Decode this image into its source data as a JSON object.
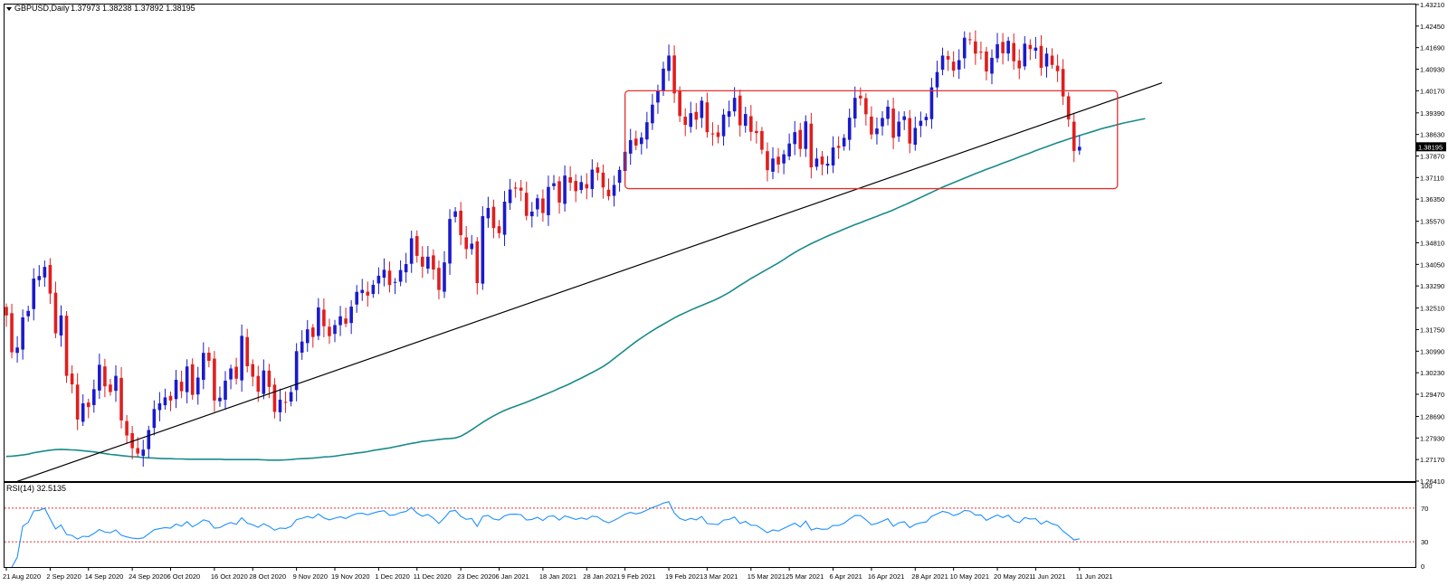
{
  "header": {
    "symbol": "GBPUSD,Daily",
    "ohlc": "1.37973 1.38238 1.37892 1.38195"
  },
  "current_price_label": "1.38195",
  "rsi_header": "RSI(14) 32.5135",
  "colors": {
    "bull": "#1a1acc",
    "bear": "#e01e1e",
    "ma": "#1a8a8a",
    "trendline": "#000000",
    "box": "#e53030",
    "rsi": "#1e90ff",
    "rsi_levels": "#e53030",
    "grid": "#c8c8c8"
  },
  "chart_data": [
    {
      "type": "candlestick",
      "title": "GBPUSD,Daily",
      "ylim": [
        1.2641,
        1.4321
      ],
      "price_ticks": [
        "1.43210",
        "1.42450",
        "1.41690",
        "1.40930",
        "1.40170",
        "1.39390",
        "1.38630",
        "1.37870",
        "1.37110",
        "1.36350",
        "1.35570",
        "1.34810",
        "1.34050",
        "1.33290",
        "1.32510",
        "1.31750",
        "1.30990",
        "1.30230",
        "1.29470",
        "1.28690",
        "1.27930",
        "1.27170",
        "1.26410"
      ],
      "x_labels": [
        "21 Aug 2020",
        "2 Sep 2020",
        "14 Sep 2020",
        "24 Sep 2020",
        "6 Oct 2020",
        "16 Oct 2020",
        "28 Oct 2020",
        "9 Nov 2020",
        "19 Nov 2020",
        "1 Dec 2020",
        "11 Dec 2020",
        "23 Dec 2020",
        "6 Jan 2021",
        "18 Jan 2021",
        "28 Jan 2021",
        "9 Feb 2021",
        "19 Feb 2021",
        "3 Mar 2021",
        "15 Mar 2021",
        "25 Mar 2021",
        "6 Apr 2021",
        "16 Apr 2021",
        "28 Apr 2021",
        "10 May 2021",
        "20 May 2021",
        "1 Jun 2021",
        "11 Jun 2021"
      ],
      "closes": [
        1.3225,
        1.3095,
        1.3112,
        1.3218,
        1.3241,
        1.3355,
        1.3364,
        1.3396,
        1.3302,
        1.3162,
        1.3225,
        1.3012,
        1.2982,
        1.2858,
        1.2915,
        1.2902,
        1.2965,
        1.3051,
        1.2975,
        1.2955,
        1.3012,
        1.2855,
        1.2802,
        1.2757,
        1.2738,
        1.2752,
        1.2821,
        1.2895,
        1.2915,
        1.2936,
        1.2925,
        1.2998,
        1.2958,
        1.3045,
        1.2945,
        1.3006,
        1.3093,
        1.3065,
        1.2925,
        1.2935,
        1.2995,
        1.3038,
        1.3002,
        1.3153,
        1.3046,
        1.3009,
        1.2956,
        1.3031,
        1.2973,
        1.2885,
        1.2928,
        1.2918,
        1.2955,
        1.3099,
        1.3133,
        1.3176,
        1.3149,
        1.3253,
        1.3187,
        1.3152,
        1.3191,
        1.3222,
        1.3196,
        1.3256,
        1.3308,
        1.3315,
        1.3295,
        1.3333,
        1.3365,
        1.3386,
        1.3332,
        1.3343,
        1.3385,
        1.3406,
        1.3497,
        1.3435,
        1.3397,
        1.3432,
        1.3387,
        1.3315,
        1.3412,
        1.3565,
        1.3592,
        1.3508,
        1.3459,
        1.3478,
        1.3339,
        1.3575,
        1.3604,
        1.3533,
        1.3515,
        1.3626,
        1.3669,
        1.3672,
        1.3665,
        1.3576,
        1.3591,
        1.3638,
        1.3586,
        1.3678,
        1.3691,
        1.3623,
        1.3718,
        1.3693,
        1.3663,
        1.3695,
        1.3673,
        1.3739,
        1.3728,
        1.3676,
        1.3645,
        1.3685,
        1.3738,
        1.3802,
        1.3843,
        1.3824,
        1.3852,
        1.3906,
        1.3968,
        1.4016,
        1.4095,
        1.4141,
        1.4008,
        1.3928,
        1.3897,
        1.3938,
        1.3915,
        1.3982,
        1.3871,
        1.3863,
        1.3854,
        1.3933,
        1.3945,
        1.3992,
        1.3895,
        1.3935,
        1.3872,
        1.3868,
        1.3809,
        1.3737,
        1.3778,
        1.3757,
        1.3793,
        1.3831,
        1.3871,
        1.3812,
        1.3909,
        1.3747,
        1.3778,
        1.3757,
        1.376,
        1.3817,
        1.3816,
        1.3851,
        1.3922,
        1.3992,
        1.399,
        1.3934,
        1.3863,
        1.3884,
        1.3921,
        1.3961,
        1.3851,
        1.3908,
        1.3927,
        1.3831,
        1.3886,
        1.3911,
        1.3925,
        1.4029,
        1.4083,
        1.4141,
        1.4127,
        1.4088,
        1.4125,
        1.4204,
        1.4196,
        1.4148,
        1.4152,
        1.4085,
        1.4133,
        1.4181,
        1.4149,
        1.4193,
        1.4121,
        1.4096,
        1.4183,
        1.4164,
        1.4169,
        1.4098,
        1.4148,
        1.4108,
        1.4086,
        1.3997,
        1.3916,
        1.3805,
        1.38195
      ],
      "trend_series": [
        {
          "name": "",
          "from": [
            "26 Aug 2020",
            1.264
          ],
          "to": [
            "1 Jul 2021",
            1.4045
          ]
        }
      ],
      "annotations": [
        {
          "type": "rectangle",
          "x0": "1 Feb 2021",
          "x1": "15 Jun 2021",
          "y0": 1.3672,
          "y1": 1.4017
        }
      ],
      "ma_series": {
        "name": "",
        "values": [
          1.2728,
          1.2729,
          1.2731,
          1.2733,
          1.2736,
          1.2741,
          1.2744,
          1.2747,
          1.275,
          1.2752,
          1.2753,
          1.2752,
          1.2751,
          1.275,
          1.2748,
          1.2746,
          1.2744,
          1.2741,
          1.2738,
          1.2735,
          1.2733,
          1.2731,
          1.2729,
          1.2727,
          1.2726,
          1.2724,
          1.2723,
          1.2722,
          1.2721,
          1.272,
          1.272,
          1.2719,
          1.2719,
          1.2718,
          1.2718,
          1.2718,
          1.2718,
          1.2718,
          1.2718,
          1.2718,
          1.2717,
          1.2717,
          1.2717,
          1.2717,
          1.2717,
          1.2717,
          1.2717,
          1.2716,
          1.2715,
          1.2715,
          1.2715,
          1.2716,
          1.2717,
          1.2719,
          1.272,
          1.2721,
          1.2722,
          1.2724,
          1.2726,
          1.2727,
          1.2729,
          1.2732,
          1.2735,
          1.2737,
          1.274,
          1.2742,
          1.2745,
          1.2749,
          1.2752,
          1.2755,
          1.2758,
          1.2762,
          1.2766,
          1.277,
          1.2774,
          1.2777,
          1.2781,
          1.2783,
          1.2785,
          1.2788,
          1.279,
          1.2791,
          1.2793,
          1.2799,
          1.281,
          1.2822,
          1.2835,
          1.2848,
          1.286,
          1.2871,
          1.2881,
          1.289,
          1.2898,
          1.2905,
          1.2912,
          1.2919,
          1.2927,
          1.2935,
          1.2943,
          1.2951,
          1.2959,
          1.2968,
          1.2976,
          1.2985,
          1.2995,
          1.3004,
          1.3014,
          1.3024,
          1.3034,
          1.3045,
          1.3058,
          1.3073,
          1.3088,
          1.3103,
          1.3118,
          1.3133,
          1.3146,
          1.3159,
          1.3171,
          1.3183,
          1.3194,
          1.3205,
          1.3216,
          1.3226,
          1.3235,
          1.3244,
          1.3252,
          1.326,
          1.3268,
          1.3276,
          1.3285,
          1.3295,
          1.3306,
          1.3318,
          1.3331,
          1.3343,
          1.3355,
          1.3366,
          1.3377,
          1.3388,
          1.3399,
          1.341,
          1.3422,
          1.3435,
          1.3447,
          1.3458,
          1.3468,
          1.3478,
          1.3487,
          1.3496,
          1.3505,
          1.3513,
          1.3521,
          1.3529,
          1.3537,
          1.3545,
          1.3552,
          1.356,
          1.3567,
          1.3574,
          1.3582,
          1.3589,
          1.3597,
          1.3606,
          1.3614,
          1.3623,
          1.3632,
          1.3641,
          1.365,
          1.3659,
          1.3668,
          1.3677,
          1.3685,
          1.3693,
          1.3701,
          1.3709,
          1.3717,
          1.3725,
          1.3732,
          1.374,
          1.3747,
          1.3754,
          1.3762,
          1.3769,
          1.3776,
          1.3784,
          1.3791,
          1.3798,
          1.3806,
          1.3813,
          1.382,
          1.3827,
          1.3834,
          1.384,
          1.3847,
          1.3853,
          1.3859,
          1.3865,
          1.3871,
          1.3877,
          1.3883,
          1.3888,
          1.3893,
          1.3898,
          1.3903,
          1.3907,
          1.3911,
          1.3915,
          1.3919
        ]
      }
    },
    {
      "type": "line",
      "title": "RSI(14) 32.5135",
      "ylim": [
        0,
        100
      ],
      "y_ticks": [
        "100",
        "70",
        "30",
        "0"
      ],
      "levels": [
        70,
        30
      ]
    }
  ]
}
